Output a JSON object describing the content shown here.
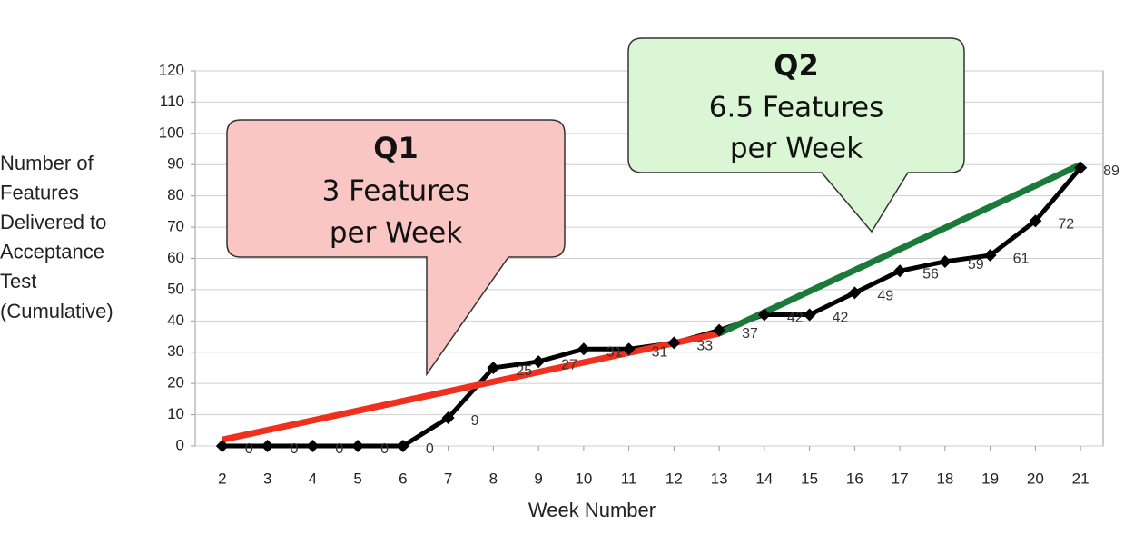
{
  "chart_data": {
    "type": "line",
    "ylabel": [
      "Number of",
      "Features",
      "Delivered to",
      "Acceptance",
      "Test",
      "(Cumulative)"
    ],
    "xlabel": "Week Number",
    "x": [
      2,
      3,
      4,
      5,
      6,
      7,
      8,
      9,
      10,
      11,
      12,
      13,
      14,
      15,
      16,
      17,
      18,
      19,
      20,
      21
    ],
    "series": [
      {
        "color": "#000000",
        "values": [
          0,
          0,
          0,
          0,
          0,
          9,
          25,
          27,
          31,
          31,
          33,
          37,
          42,
          42,
          49,
          56,
          59,
          61,
          72,
          89
        ]
      }
    ],
    "xlim": [
      1.4,
      21.5
    ],
    "xticks": [
      2,
      3,
      4,
      5,
      6,
      7,
      8,
      9,
      10,
      11,
      12,
      13,
      14,
      15,
      16,
      17,
      18,
      19,
      20,
      21
    ],
    "ylim": [
      0,
      120
    ],
    "yticks": [
      0,
      10,
      20,
      30,
      40,
      50,
      60,
      70,
      80,
      90,
      100,
      110,
      120
    ],
    "grid": true,
    "trend_lines": [
      {
        "color": "#f0301e",
        "x": [
          2,
          13
        ],
        "values": [
          2,
          36
        ]
      },
      {
        "color": "#1b7a3a",
        "x": [
          13,
          21
        ],
        "values": [
          36,
          90
        ]
      }
    ],
    "callouts": [
      {
        "title": "Q1",
        "lines": [
          "3 Features",
          "per Week"
        ]
      },
      {
        "title": "Q2",
        "lines": [
          "6.5 Features",
          "per Week"
        ]
      }
    ]
  }
}
